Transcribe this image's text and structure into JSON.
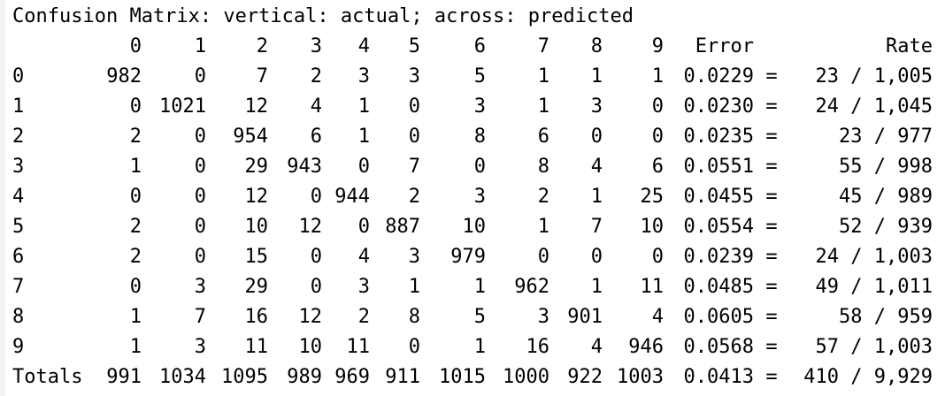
{
  "title": "Confusion Matrix: vertical: actual; across: predicted",
  "header": [
    "0",
    "1",
    "2",
    "3",
    "4",
    "5",
    "6",
    "7",
    "8",
    "9",
    "Error",
    "Rate"
  ],
  "rows": [
    {
      "label": "0",
      "cells": [
        "982",
        "0",
        "7",
        "2",
        "3",
        "3",
        "5",
        "1",
        "1",
        "1"
      ],
      "error": "0.0229",
      "eq": "=",
      "rate": "23 / 1,005"
    },
    {
      "label": "1",
      "cells": [
        "0",
        "1021",
        "12",
        "4",
        "1",
        "0",
        "3",
        "1",
        "3",
        "0"
      ],
      "error": "0.0230",
      "eq": "=",
      "rate": "24 / 1,045"
    },
    {
      "label": "2",
      "cells": [
        "2",
        "0",
        "954",
        "6",
        "1",
        "0",
        "8",
        "6",
        "0",
        "0"
      ],
      "error": "0.0235",
      "eq": "=",
      "rate": "23 / 977"
    },
    {
      "label": "3",
      "cells": [
        "1",
        "0",
        "29",
        "943",
        "0",
        "7",
        "0",
        "8",
        "4",
        "6"
      ],
      "error": "0.0551",
      "eq": "=",
      "rate": "55 / 998"
    },
    {
      "label": "4",
      "cells": [
        "0",
        "0",
        "12",
        "0",
        "944",
        "2",
        "3",
        "2",
        "1",
        "25"
      ],
      "error": "0.0455",
      "eq": "=",
      "rate": "45 / 989"
    },
    {
      "label": "5",
      "cells": [
        "2",
        "0",
        "10",
        "12",
        "0",
        "887",
        "10",
        "1",
        "7",
        "10"
      ],
      "error": "0.0554",
      "eq": "=",
      "rate": "52 / 939"
    },
    {
      "label": "6",
      "cells": [
        "2",
        "0",
        "15",
        "0",
        "4",
        "3",
        "979",
        "0",
        "0",
        "0"
      ],
      "error": "0.0239",
      "eq": "=",
      "rate": "24 / 1,003"
    },
    {
      "label": "7",
      "cells": [
        "0",
        "3",
        "29",
        "0",
        "3",
        "1",
        "1",
        "962",
        "1",
        "11"
      ],
      "error": "0.0485",
      "eq": "=",
      "rate": "49 / 1,011"
    },
    {
      "label": "8",
      "cells": [
        "1",
        "7",
        "16",
        "12",
        "2",
        "8",
        "5",
        "3",
        "901",
        "4"
      ],
      "error": "0.0605",
      "eq": "=",
      "rate": "58 / 959"
    },
    {
      "label": "9",
      "cells": [
        "1",
        "3",
        "11",
        "10",
        "11",
        "0",
        "1",
        "16",
        "4",
        "946"
      ],
      "error": "0.0568",
      "eq": "=",
      "rate": "57 / 1,003"
    }
  ],
  "totals": {
    "label": "Totals",
    "cells": [
      "991",
      "1034",
      "1095",
      "989",
      "969",
      "911",
      "1015",
      "1000",
      "922",
      "1003"
    ],
    "error": "0.0413",
    "eq": "=",
    "rate": "410 / 9,929"
  }
}
